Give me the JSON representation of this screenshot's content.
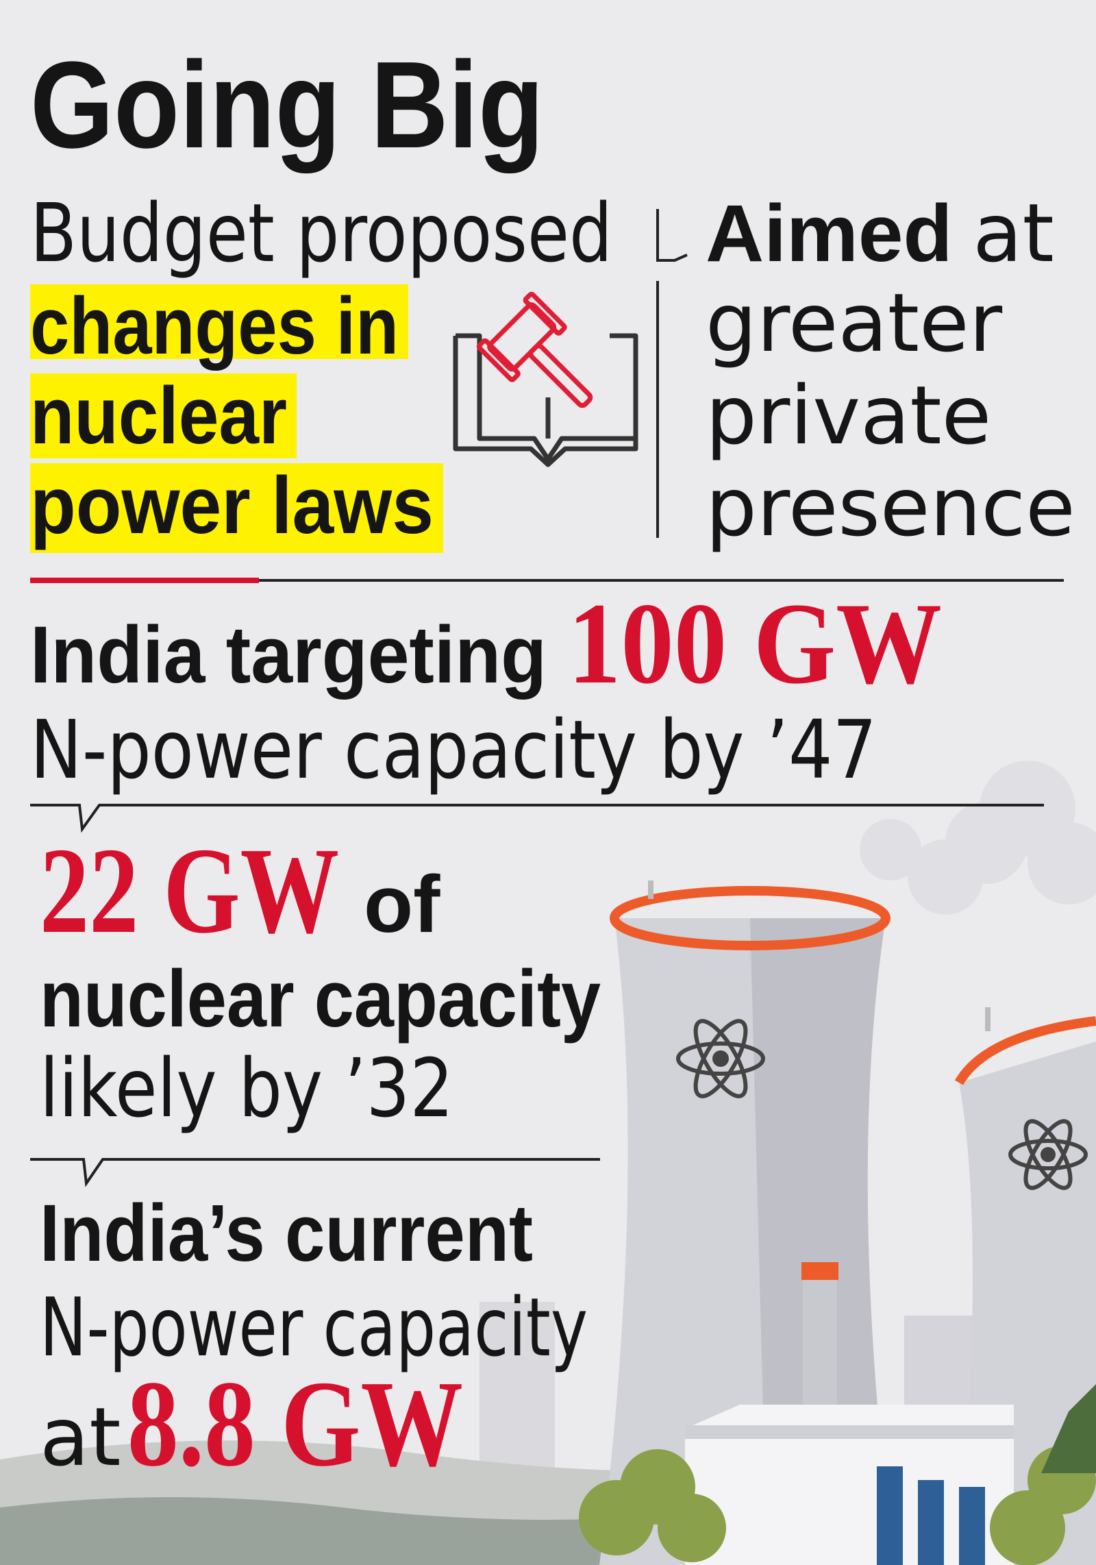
{
  "title": "Going Big",
  "intro": {
    "text": "Budget proposed",
    "highlight": [
      "changes in",
      "nuclear",
      "power laws"
    ]
  },
  "aim": {
    "bold": "Aimed",
    "text": "at",
    "lines": [
      "greater",
      "private",
      "presence"
    ]
  },
  "target": {
    "lead": "India targeting",
    "figure": "100 GW",
    "rest": "N-power capacity by ’47"
  },
  "projection": {
    "figure": "22 GW",
    "lead": "of",
    "line": "nuclear capacity",
    "rest": "likely by ’32"
  },
  "current": {
    "lead": "India’s current",
    "line": "N-power capacity",
    "prefix": "at",
    "figure": "8.8 GW"
  }
}
